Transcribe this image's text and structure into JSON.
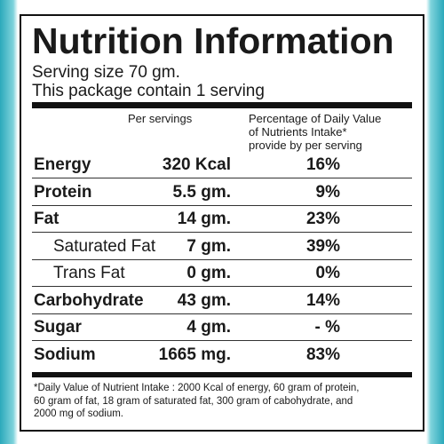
{
  "header": {
    "title": "Nutrition Information",
    "serving_size": "Serving size 70 gm.",
    "servings": "This package contain 1 serving"
  },
  "table": {
    "columns": {
      "amount": "Per servings",
      "percent": [
        "Percentage of Daily Value",
        "of Nutrients Intake*",
        "provide by per serving"
      ]
    },
    "rows": [
      {
        "label": "Energy",
        "amount": "320 Kcal",
        "percent": "16%",
        "sub": false
      },
      {
        "label": "Protein",
        "amount": "5.5 gm.",
        "percent": "9%",
        "sub": false
      },
      {
        "label": "Fat",
        "amount": "14 gm.",
        "percent": "23%",
        "sub": false
      },
      {
        "label": "Saturated Fat",
        "amount": "7 gm.",
        "percent": "39%",
        "sub": true
      },
      {
        "label": "Trans Fat",
        "amount": "0 gm.",
        "percent": "0%",
        "sub": true
      },
      {
        "label": "Carbohydrate",
        "amount": "43 gm.",
        "percent": "14%",
        "sub": false
      },
      {
        "label": "Sugar",
        "amount": "4 gm.",
        "percent": "- %",
        "sub": false
      },
      {
        "label": "Sodium",
        "amount": "1665 mg.",
        "percent": "83%",
        "sub": false
      }
    ]
  },
  "footnote": [
    "*Daily Value of Nutrient Intake : 2000 Kcal of energy, 60 gram of protein,",
    "60 gram of fat, 18 gram of saturated fat, 300 gram of cabohydrate, and",
    "2000 mg of sodium."
  ]
}
